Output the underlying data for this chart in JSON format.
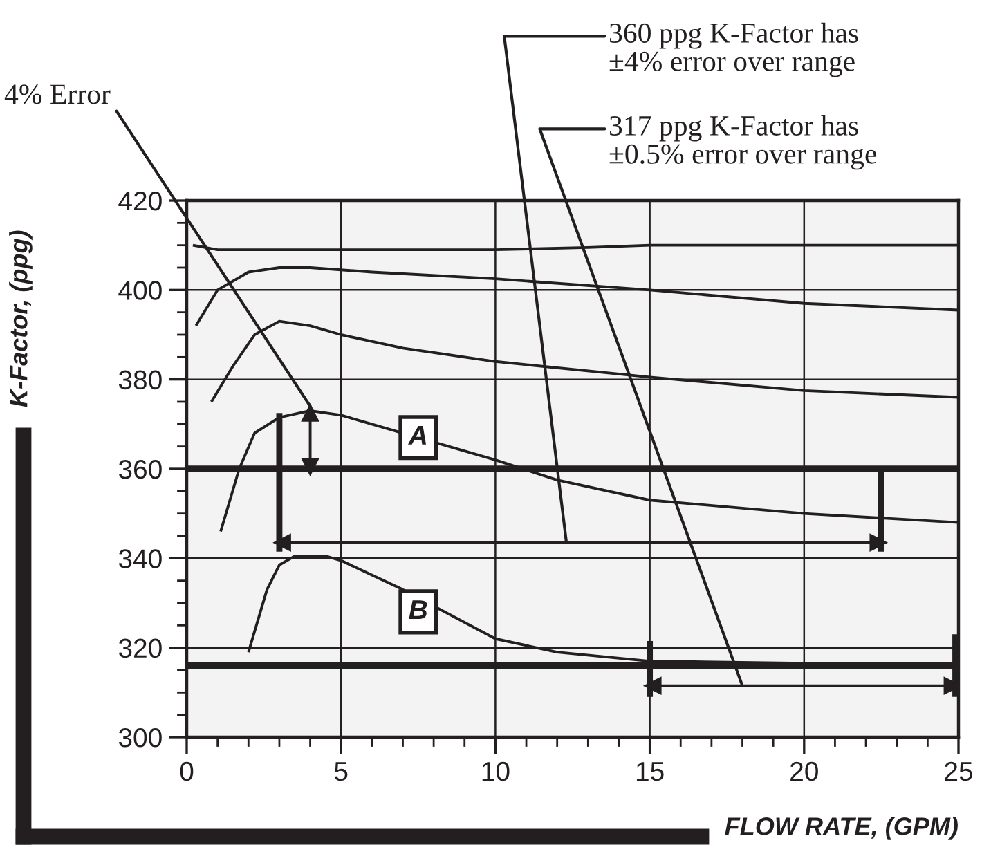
{
  "chart_data": {
    "type": "line",
    "xlabel": "FLOW RATE, (GPM)",
    "ylabel": "K-Factor, (ppg)",
    "xlim": [
      0,
      25
    ],
    "xticks": [
      0,
      5,
      10,
      15,
      20,
      25
    ],
    "ylim": [
      300,
      420
    ],
    "yticks": [
      300,
      320,
      340,
      360,
      380,
      400,
      420
    ],
    "grid": true,
    "marker": "none",
    "line_style": "solid",
    "series": [
      {
        "color": "#231f20",
        "x": [
          0.2,
          1,
          3,
          6,
          10,
          13,
          15,
          20,
          25
        ],
        "values": [
          410,
          409,
          409,
          409,
          409,
          409.5,
          410,
          410,
          410
        ]
      },
      {
        "color": "#231f20",
        "x": [
          0.3,
          1,
          2,
          3,
          4,
          6,
          10,
          15,
          20,
          25
        ],
        "values": [
          392,
          400,
          404,
          405,
          405,
          404,
          402.5,
          400,
          397,
          395.5
        ]
      },
      {
        "color": "#231f20",
        "x": [
          0.8,
          1.5,
          2.2,
          3,
          4,
          5,
          7,
          10,
          15,
          20,
          25
        ],
        "values": [
          375,
          383,
          390,
          393,
          392,
          390,
          387,
          384,
          380.5,
          377.5,
          376
        ]
      },
      {
        "color": "#231f20",
        "x": [
          1.1,
          1.7,
          2.2,
          3,
          4,
          5,
          7,
          10,
          12,
          15,
          20,
          25
        ],
        "values": [
          346,
          360,
          368,
          371.5,
          373,
          372,
          368,
          362,
          357.5,
          353,
          350,
          348
        ]
      },
      {
        "color": "#231f20",
        "x": [
          2,
          2.6,
          3,
          3.5,
          4.5,
          5,
          7,
          10,
          12,
          15,
          20,
          25
        ],
        "values": [
          319,
          333,
          338.5,
          340.5,
          340.5,
          339.5,
          333,
          322,
          319,
          317,
          316.5,
          316.5
        ]
      },
      {
        "color": "#231f20",
        "x": [
          3,
          3
        ],
        "values": [
          372.5,
          341.5
        ]
      },
      {
        "color": "#231f20",
        "x": [
          22.5,
          22.5
        ],
        "values": [
          360,
          341.5
        ]
      },
      {
        "color": "#231f20",
        "x": [
          15,
          15
        ],
        "values": [
          321.5,
          309
        ]
      },
      {
        "color": "#231f20",
        "x": [
          24.9,
          24.9
        ],
        "values": [
          323,
          309
        ]
      },
      {
        "color": "#231f20",
        "x": [
          3.1,
          22.4
        ],
        "values": [
          343.5,
          343.5
        ],
        "marker": "triangle"
      },
      {
        "color": "#231f20",
        "x": [
          15.1,
          24.8
        ],
        "values": [
          311.5,
          311.5
        ],
        "marker": "triangle"
      },
      {
        "color": "#231f20",
        "x": [
          4,
          4
        ],
        "values": [
          372.5,
          360.5
        ],
        "marker": "triangle"
      }
    ],
    "ref_lines": [
      {
        "axis": "y",
        "value": 360,
        "color": "#231f20"
      },
      {
        "axis": "y",
        "value": 316,
        "color": "#231f20"
      }
    ],
    "annotations": [
      {
        "text": "A",
        "x": 7.5,
        "y": 367
      },
      {
        "text": "B",
        "x": 7.5,
        "y": 328
      },
      {
        "text": "4% Error",
        "x": 4,
        "y": 374
      },
      {
        "text": "360 ppg K-Factor has\n±4% error over range",
        "x": 12.3,
        "y": 343.5
      },
      {
        "text": "317 ppg K-Factor has\n±0.5% error over range",
        "x": 18,
        "y": 311.5
      }
    ]
  }
}
